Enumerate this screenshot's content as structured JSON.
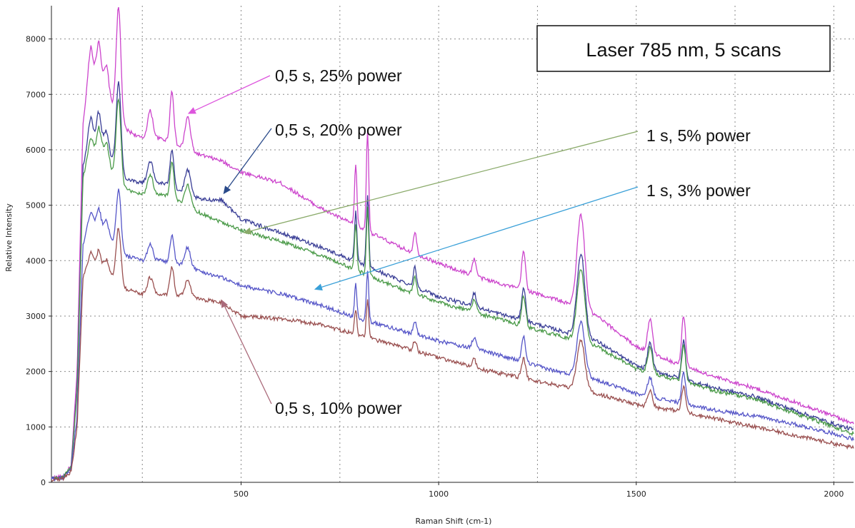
{
  "chart_data": {
    "type": "line",
    "title": "Laser 785 nm, 5 scans",
    "xlabel": "Raman Shift (cm-1)",
    "ylabel": "Relative Intensity",
    "xlim": [
      20,
      2050
    ],
    "ylim": [
      0,
      8600
    ],
    "xticks": [
      500,
      1000,
      1500,
      2000
    ],
    "yticks": [
      0,
      1000,
      2000,
      3000,
      4000,
      5000,
      6000,
      7000,
      8000
    ],
    "grid": true,
    "legend": "none",
    "series": [
      {
        "name": "0,5 s, 25% power",
        "color": "#cc44cc",
        "baseline": [
          [
            20,
            80
          ],
          [
            50,
            100
          ],
          [
            70,
            300
          ],
          [
            85,
            2000
          ],
          [
            100,
            6500
          ],
          [
            120,
            7500
          ],
          [
            150,
            7300
          ],
          [
            175,
            6800
          ],
          [
            200,
            6400
          ],
          [
            250,
            6200
          ],
          [
            300,
            6200
          ],
          [
            360,
            6000
          ],
          [
            400,
            5900
          ],
          [
            450,
            5800
          ],
          [
            500,
            5600
          ],
          [
            600,
            5400
          ],
          [
            700,
            4950
          ],
          [
            800,
            4600
          ],
          [
            900,
            4250
          ],
          [
            1000,
            3950
          ],
          [
            1100,
            3700
          ],
          [
            1200,
            3500
          ],
          [
            1300,
            3300
          ],
          [
            1400,
            3000
          ],
          [
            1500,
            2450
          ],
          [
            1600,
            2150
          ],
          [
            1700,
            1900
          ],
          [
            1800,
            1700
          ],
          [
            1900,
            1450
          ],
          [
            2000,
            1200
          ],
          [
            2050,
            1050
          ]
        ],
        "peaks": [
          [
            118,
            400,
            6
          ],
          [
            140,
            600,
            5
          ],
          [
            160,
            400,
            5
          ],
          [
            190,
            2000,
            6
          ],
          [
            270,
            500,
            7
          ],
          [
            325,
            950,
            5
          ],
          [
            365,
            600,
            7
          ],
          [
            790,
            1100,
            3
          ],
          [
            820,
            1800,
            3
          ],
          [
            940,
            400,
            4
          ],
          [
            1090,
            300,
            5
          ],
          [
            1215,
            700,
            5
          ],
          [
            1360,
            1700,
            10
          ],
          [
            1535,
            600,
            6
          ],
          [
            1620,
            900,
            5
          ]
        ]
      },
      {
        "name": "0,5 s, 20% power",
        "color": "#3a3e96",
        "baseline": [
          [
            20,
            70
          ],
          [
            50,
            90
          ],
          [
            70,
            280
          ],
          [
            85,
            1700
          ],
          [
            100,
            5700
          ],
          [
            120,
            6300
          ],
          [
            150,
            6200
          ],
          [
            175,
            5800
          ],
          [
            200,
            5500
          ],
          [
            250,
            5400
          ],
          [
            300,
            5400
          ],
          [
            360,
            5200
          ],
          [
            400,
            5100
          ],
          [
            450,
            5100
          ],
          [
            500,
            4750
          ],
          [
            600,
            4500
          ],
          [
            700,
            4250
          ],
          [
            800,
            3950
          ],
          [
            900,
            3650
          ],
          [
            1000,
            3350
          ],
          [
            1100,
            3150
          ],
          [
            1200,
            2950
          ],
          [
            1300,
            2750
          ],
          [
            1400,
            2550
          ],
          [
            1500,
            2100
          ],
          [
            1600,
            1900
          ],
          [
            1700,
            1700
          ],
          [
            1800,
            1550
          ],
          [
            1900,
            1300
          ],
          [
            2000,
            1050
          ],
          [
            2050,
            950
          ]
        ],
        "peaks": [
          [
            118,
            300,
            6
          ],
          [
            140,
            450,
            5
          ],
          [
            160,
            300,
            5
          ],
          [
            190,
            1600,
            6
          ],
          [
            270,
            400,
            7
          ],
          [
            325,
            700,
            5
          ],
          [
            365,
            450,
            7
          ],
          [
            790,
            900,
            3
          ],
          [
            820,
            1300,
            3
          ],
          [
            940,
            350,
            4
          ],
          [
            1090,
            250,
            5
          ],
          [
            1215,
            600,
            5
          ],
          [
            1360,
            1500,
            10
          ],
          [
            1535,
            500,
            6
          ],
          [
            1620,
            700,
            5
          ]
        ]
      },
      {
        "name": "1 s, 5% power",
        "color": "#4a9a48",
        "baseline": [
          [
            20,
            70
          ],
          [
            50,
            90
          ],
          [
            70,
            270
          ],
          [
            85,
            1600
          ],
          [
            100,
            5500
          ],
          [
            120,
            6000
          ],
          [
            150,
            6000
          ],
          [
            175,
            5600
          ],
          [
            200,
            5300
          ],
          [
            250,
            5200
          ],
          [
            300,
            5200
          ],
          [
            360,
            5000
          ],
          [
            400,
            4850
          ],
          [
            450,
            4700
          ],
          [
            500,
            4550
          ],
          [
            600,
            4350
          ],
          [
            700,
            4100
          ],
          [
            800,
            3800
          ],
          [
            900,
            3500
          ],
          [
            1000,
            3250
          ],
          [
            1100,
            3050
          ],
          [
            1200,
            2850
          ],
          [
            1300,
            2650
          ],
          [
            1400,
            2450
          ],
          [
            1500,
            2050
          ],
          [
            1600,
            1850
          ],
          [
            1700,
            1650
          ],
          [
            1800,
            1500
          ],
          [
            1900,
            1250
          ],
          [
            2000,
            1000
          ],
          [
            2050,
            870
          ]
        ],
        "peaks": [
          [
            118,
            250,
            6
          ],
          [
            140,
            400,
            5
          ],
          [
            160,
            300,
            5
          ],
          [
            190,
            1500,
            6
          ],
          [
            270,
            350,
            7
          ],
          [
            325,
            650,
            5
          ],
          [
            365,
            400,
            7
          ],
          [
            790,
            850,
            3
          ],
          [
            820,
            1200,
            3
          ],
          [
            940,
            300,
            4
          ],
          [
            1090,
            250,
            5
          ],
          [
            1215,
            550,
            5
          ],
          [
            1360,
            1300,
            10
          ],
          [
            1535,
            450,
            6
          ],
          [
            1620,
            650,
            5
          ]
        ]
      },
      {
        "name": "1 s, 3% power",
        "color": "#5656c8",
        "baseline": [
          [
            20,
            60
          ],
          [
            50,
            80
          ],
          [
            70,
            230
          ],
          [
            85,
            1200
          ],
          [
            100,
            4300
          ],
          [
            120,
            4700
          ],
          [
            150,
            4600
          ],
          [
            175,
            4300
          ],
          [
            200,
            4100
          ],
          [
            250,
            4000
          ],
          [
            300,
            4000
          ],
          [
            360,
            3900
          ],
          [
            400,
            3800
          ],
          [
            450,
            3700
          ],
          [
            500,
            3550
          ],
          [
            600,
            3400
          ],
          [
            700,
            3200
          ],
          [
            800,
            2950
          ],
          [
            900,
            2750
          ],
          [
            1000,
            2550
          ],
          [
            1100,
            2400
          ],
          [
            1200,
            2200
          ],
          [
            1300,
            2000
          ],
          [
            1400,
            1850
          ],
          [
            1500,
            1600
          ],
          [
            1600,
            1450
          ],
          [
            1700,
            1300
          ],
          [
            1800,
            1200
          ],
          [
            1900,
            1050
          ],
          [
            2000,
            880
          ],
          [
            2050,
            780
          ]
        ],
        "peaks": [
          [
            118,
            200,
            6
          ],
          [
            140,
            300,
            5
          ],
          [
            160,
            250,
            5
          ],
          [
            190,
            1100,
            6
          ],
          [
            270,
            300,
            7
          ],
          [
            325,
            500,
            5
          ],
          [
            365,
            350,
            7
          ],
          [
            790,
            600,
            3
          ],
          [
            820,
            900,
            3
          ],
          [
            940,
            250,
            4
          ],
          [
            1090,
            200,
            5
          ],
          [
            1215,
            450,
            5
          ],
          [
            1360,
            1000,
            10
          ],
          [
            1535,
            350,
            6
          ],
          [
            1620,
            550,
            5
          ]
        ]
      },
      {
        "name": "0,5 s, 10% power",
        "color": "#9a5050",
        "baseline": [
          [
            20,
            50
          ],
          [
            50,
            70
          ],
          [
            70,
            200
          ],
          [
            85,
            1000
          ],
          [
            100,
            3700
          ],
          [
            120,
            4000
          ],
          [
            150,
            3900
          ],
          [
            175,
            3700
          ],
          [
            200,
            3500
          ],
          [
            250,
            3400
          ],
          [
            300,
            3400
          ],
          [
            360,
            3350
          ],
          [
            400,
            3300
          ],
          [
            450,
            3250
          ],
          [
            500,
            3000
          ],
          [
            600,
            2950
          ],
          [
            700,
            2850
          ],
          [
            800,
            2650
          ],
          [
            900,
            2450
          ],
          [
            1000,
            2250
          ],
          [
            1100,
            2050
          ],
          [
            1200,
            1900
          ],
          [
            1300,
            1750
          ],
          [
            1400,
            1600
          ],
          [
            1500,
            1400
          ],
          [
            1600,
            1300
          ],
          [
            1700,
            1150
          ],
          [
            1800,
            1000
          ],
          [
            1900,
            850
          ],
          [
            2000,
            700
          ],
          [
            2050,
            620
          ]
        ],
        "peaks": [
          [
            118,
            150,
            6
          ],
          [
            140,
            250,
            5
          ],
          [
            160,
            200,
            5
          ],
          [
            190,
            1000,
            6
          ],
          [
            270,
            300,
            7
          ],
          [
            325,
            500,
            5
          ],
          [
            365,
            300,
            7
          ],
          [
            790,
            450,
            3
          ],
          [
            820,
            700,
            3
          ],
          [
            940,
            200,
            4
          ],
          [
            1090,
            150,
            5
          ],
          [
            1215,
            350,
            5
          ],
          [
            1360,
            900,
            10
          ],
          [
            1535,
            300,
            6
          ],
          [
            1620,
            450,
            5
          ]
        ]
      }
    ],
    "annotations": [
      {
        "text": "0,5 s, 25% power",
        "series": "0,5 s, 25% power",
        "color": "#dd55dd",
        "pointer": [
          365,
          6650
        ]
      },
      {
        "text": "0,5 s, 20% power",
        "series": "0,5 s, 20% power",
        "color": "#2a4a8a",
        "pointer": [
          455,
          5200
        ]
      },
      {
        "text": "1 s, 5% power",
        "series": "1 s, 5% power",
        "color": "#8aaa6a",
        "pointer": [
          505,
          4500
        ]
      },
      {
        "text": "1 s, 3% power",
        "series": "1 s, 3% power",
        "color": "#3aa0d8",
        "pointer": [
          685,
          3480
        ]
      },
      {
        "text": "0,5 s, 10% power",
        "series": "0,5 s, 10% power",
        "color": "#aa6a7a",
        "pointer": [
          450,
          3300
        ]
      }
    ]
  }
}
